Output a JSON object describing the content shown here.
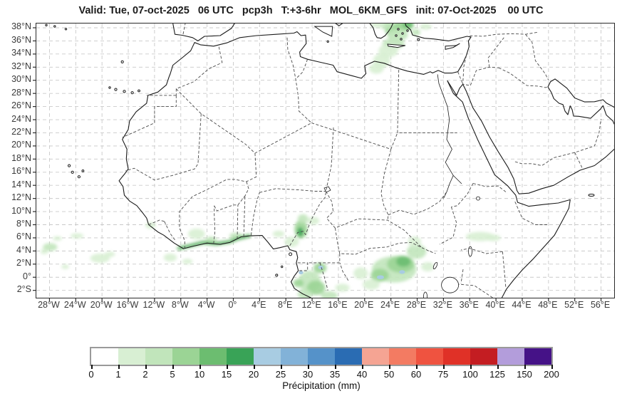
{
  "title": "Valid: Tue, 07-oct-2025   06 UTC   pcp3h   T:+3-6hr   MOL_6KM_GFS   init: 07-Oct-2025    00 UTC",
  "map": {
    "extent": {
      "lon_min": -30,
      "lon_max": 58,
      "lat_min": -3.12,
      "lat_max": 38.65
    },
    "lat_ticks": [
      {
        "value": 38,
        "label": "38°N"
      },
      {
        "value": 36,
        "label": "36°N"
      },
      {
        "value": 34,
        "label": "34°N"
      },
      {
        "value": 32,
        "label": "32°N"
      },
      {
        "value": 30,
        "label": "30°N"
      },
      {
        "value": 28,
        "label": "28°N"
      },
      {
        "value": 26,
        "label": "26°N"
      },
      {
        "value": 24,
        "label": "24°N"
      },
      {
        "value": 22,
        "label": "22°N"
      },
      {
        "value": 20,
        "label": "20°N"
      },
      {
        "value": 18,
        "label": "18°N"
      },
      {
        "value": 16,
        "label": "16°N"
      },
      {
        "value": 14,
        "label": "14°N"
      },
      {
        "value": 12,
        "label": "12°N"
      },
      {
        "value": 10,
        "label": "10°N"
      },
      {
        "value": 8,
        "label": "8°N"
      },
      {
        "value": 6,
        "label": "6°N"
      },
      {
        "value": 4,
        "label": "4°N"
      },
      {
        "value": 2,
        "label": "2°N"
      },
      {
        "value": 0,
        "label": "0°"
      },
      {
        "value": -2,
        "label": "2°S"
      }
    ],
    "lon_ticks": [
      {
        "value": -28,
        "label": "28°W"
      },
      {
        "value": -24,
        "label": "24°W"
      },
      {
        "value": -20,
        "label": "20°W"
      },
      {
        "value": -16,
        "label": "16°W"
      },
      {
        "value": -12,
        "label": "12°W"
      },
      {
        "value": -8,
        "label": "8°W"
      },
      {
        "value": -4,
        "label": "4°W"
      },
      {
        "value": 0,
        "label": "0°"
      },
      {
        "value": 4,
        "label": "4°E"
      },
      {
        "value": 8,
        "label": "8°E"
      },
      {
        "value": 12,
        "label": "12°E"
      },
      {
        "value": 16,
        "label": "16°E"
      },
      {
        "value": 20,
        "label": "20°E"
      },
      {
        "value": 24,
        "label": "24°E"
      },
      {
        "value": 28,
        "label": "28°E"
      },
      {
        "value": 32,
        "label": "32°E"
      },
      {
        "value": 36,
        "label": "36°E"
      },
      {
        "value": 40,
        "label": "40°E"
      },
      {
        "value": 44,
        "label": "44°E"
      },
      {
        "value": 48,
        "label": "48°E"
      },
      {
        "value": 52,
        "label": "52°E"
      },
      {
        "value": 56,
        "label": "56°E"
      }
    ]
  },
  "colorbar": {
    "label": "Précipitation (mm)",
    "tick_values": [
      "0",
      "1",
      "2",
      "5",
      "10",
      "15",
      "20",
      "25",
      "30",
      "35",
      "40",
      "50",
      "60",
      "75",
      "100",
      "125",
      "150",
      "200"
    ],
    "segment_colors": [
      "#ffffff",
      "#d8efd3",
      "#c1e5bb",
      "#9bd495",
      "#6cbd70",
      "#39a357",
      "#a8cce2",
      "#82b2d8",
      "#5592c9",
      "#2a6cb3",
      "#f5a493",
      "#f37b62",
      "#ef5340",
      "#e03127",
      "#c41d22",
      "#b39ddb",
      "#451287"
    ]
  },
  "chart_data": {
    "type": "heatmap",
    "title": "3-hour accumulated precipitation forecast (mm), MOL_6KM_GFS",
    "units": "mm",
    "legend_bounds": [
      0,
      1,
      2,
      5,
      10,
      15,
      20,
      25,
      30,
      35,
      40,
      50,
      60,
      75,
      100,
      125,
      150,
      200
    ],
    "precip_cells": [
      {
        "lon": 25.2,
        "lat": 38.4,
        "rx": 2.4,
        "ry": 1.1,
        "seg": 2
      },
      {
        "lon": 25.9,
        "lat": 38.4,
        "rx": 1.3,
        "ry": 0.8,
        "seg": 3
      },
      {
        "lon": 26.6,
        "lat": 38.5,
        "rx": 0.8,
        "ry": 0.6,
        "seg": 4
      },
      {
        "lon": 24.2,
        "lat": 37.6,
        "rx": 1.1,
        "ry": 0.8,
        "seg": 3
      },
      {
        "lon": 23.2,
        "lat": 38.4,
        "rx": 1.0,
        "ry": 0.6,
        "seg": 2
      },
      {
        "lon": 22.0,
        "lat": 38.5,
        "rx": 1.1,
        "ry": 0.5,
        "seg": 1
      },
      {
        "lon": 25.0,
        "lat": 36.9,
        "rx": 1.6,
        "ry": 0.9,
        "seg": 2
      },
      {
        "lon": 24.4,
        "lat": 35.6,
        "rx": 1.7,
        "ry": 0.8,
        "seg": 2
      },
      {
        "lon": 23.6,
        "lat": 34.5,
        "rx": 1.5,
        "ry": 1.0,
        "seg": 1
      },
      {
        "lon": 22.6,
        "lat": 33.0,
        "rx": 1.3,
        "ry": 1.1,
        "seg": 1
      },
      {
        "lon": 21.8,
        "lat": 31.8,
        "rx": 1.1,
        "ry": 0.8,
        "seg": 1
      },
      {
        "lon": 29.3,
        "lat": 38.2,
        "rx": 0.9,
        "ry": 0.5,
        "seg": 1
      },
      {
        "lon": 27.8,
        "lat": 37.3,
        "rx": 0.7,
        "ry": 0.5,
        "seg": 2
      },
      {
        "lon": -27.9,
        "lat": 4.6,
        "rx": 1.1,
        "ry": 0.6,
        "seg": 2
      },
      {
        "lon": -28.8,
        "lat": 3.9,
        "rx": 0.6,
        "ry": 0.4,
        "seg": 1
      },
      {
        "lon": -26.8,
        "lat": 5.9,
        "rx": 0.7,
        "ry": 0.35,
        "seg": 1
      },
      {
        "lon": -23.8,
        "lat": 6.3,
        "rx": 1.0,
        "ry": 0.4,
        "seg": 1
      },
      {
        "lon": -20.3,
        "lat": 2.9,
        "rx": 1.5,
        "ry": 0.7,
        "seg": 1
      },
      {
        "lon": -18.8,
        "lat": 3.5,
        "rx": 0.8,
        "ry": 0.4,
        "seg": 1
      },
      {
        "lon": -25.6,
        "lat": 1.6,
        "rx": 0.6,
        "ry": 0.35,
        "seg": 1
      },
      {
        "lon": -5.6,
        "lat": 6.6,
        "rx": 1.3,
        "ry": 0.8,
        "seg": 1
      },
      {
        "lon": -3.4,
        "lat": 5.7,
        "rx": 0.9,
        "ry": 0.5,
        "seg": 2
      },
      {
        "lon": 0.4,
        "lat": 6.3,
        "rx": 1.0,
        "ry": 0.5,
        "seg": 2
      },
      {
        "lon": -12.6,
        "lat": 7.9,
        "rx": 0.8,
        "ry": 0.5,
        "seg": 1
      },
      {
        "lon": -9.6,
        "lat": 3.0,
        "rx": 1.0,
        "ry": 0.6,
        "seg": 1
      },
      {
        "lon": -7.0,
        "lat": 2.4,
        "rx": 0.8,
        "ry": 0.4,
        "seg": 1
      },
      {
        "lon": 10.3,
        "lat": 7.3,
        "rx": 1.0,
        "ry": 1.4,
        "seg": 3
      },
      {
        "lon": 10.2,
        "lat": 6.9,
        "rx": 0.45,
        "ry": 0.7,
        "seg": 5
      },
      {
        "lon": 10.6,
        "lat": 8.9,
        "rx": 0.8,
        "ry": 0.7,
        "seg": 2
      },
      {
        "lon": 8.9,
        "lat": 5.4,
        "rx": 1.1,
        "ry": 0.8,
        "seg": 1
      },
      {
        "lon": 6.9,
        "lat": 6.6,
        "rx": 0.9,
        "ry": 0.5,
        "seg": 1
      },
      {
        "lon": 12.2,
        "lat": 8.6,
        "rx": 0.9,
        "ry": 0.6,
        "seg": 1
      },
      {
        "lon": 11.6,
        "lat": -0.6,
        "rx": 1.7,
        "ry": 1.6,
        "seg": 2
      },
      {
        "lon": 12.6,
        "lat": -1.6,
        "rx": 1.4,
        "ry": 1.1,
        "seg": 3
      },
      {
        "lon": 10.9,
        "lat": -2.6,
        "rx": 1.1,
        "ry": 0.8,
        "seg": 2
      },
      {
        "lon": 14.6,
        "lat": -2.8,
        "rx": 1.3,
        "ry": 0.7,
        "seg": 2
      },
      {
        "lon": 9.9,
        "lat": -0.9,
        "rx": 0.8,
        "ry": 0.6,
        "seg": 3
      },
      {
        "lon": 16.6,
        "lat": -1.6,
        "rx": 1.1,
        "ry": 0.6,
        "seg": 1
      },
      {
        "lon": 10.3,
        "lat": 0.7,
        "rx": 0.35,
        "ry": 0.25,
        "seg": 6,
        "crisp": true
      },
      {
        "lon": 13.3,
        "lat": 1.5,
        "rx": 0.4,
        "ry": 0.28,
        "seg": 6,
        "crisp": true
      },
      {
        "lon": 13.2,
        "lat": 1.4,
        "rx": 1.0,
        "ry": 0.8,
        "seg": 3
      },
      {
        "lon": 24.5,
        "lat": 1.2,
        "rx": 3.4,
        "ry": 2.0,
        "seg": 2
      },
      {
        "lon": 25.5,
        "lat": 2.0,
        "rx": 2.1,
        "ry": 1.3,
        "seg": 3
      },
      {
        "lon": 25.9,
        "lat": 2.4,
        "rx": 1.1,
        "ry": 0.8,
        "seg": 4
      },
      {
        "lon": 22.3,
        "lat": 0.3,
        "rx": 1.4,
        "ry": 1.0,
        "seg": 3
      },
      {
        "lon": 22.4,
        "lat": 0.0,
        "rx": 0.55,
        "ry": 0.3,
        "seg": 6,
        "crisp": true
      },
      {
        "lon": 25.7,
        "lat": 0.8,
        "rx": 0.45,
        "ry": 0.28,
        "seg": 6,
        "crisp": true
      },
      {
        "lon": 27.9,
        "lat": 3.9,
        "rx": 1.5,
        "ry": 1.1,
        "seg": 2
      },
      {
        "lon": 27.6,
        "lat": 5.4,
        "rx": 1.0,
        "ry": 0.8,
        "seg": 1
      },
      {
        "lon": 21.0,
        "lat": -1.1,
        "rx": 1.3,
        "ry": 0.8,
        "seg": 1
      },
      {
        "lon": 19.4,
        "lat": 0.6,
        "rx": 1.1,
        "ry": 0.9,
        "seg": 1
      },
      {
        "lon": 29.6,
        "lat": 1.6,
        "rx": 1.0,
        "ry": 0.7,
        "seg": 1
      },
      {
        "lon": 37.6,
        "lat": 6.2,
        "rx": 2.2,
        "ry": 0.7,
        "seg": 1
      },
      {
        "lon": 39.6,
        "lat": 6.0,
        "rx": 1.1,
        "ry": 0.5,
        "seg": 1
      }
    ],
    "coast_rain_line": {
      "points": [
        [
          -8.3,
          4.4
        ],
        [
          -6.6,
          4.8
        ],
        [
          -4.6,
          5.3
        ],
        [
          -2.6,
          5.1
        ],
        [
          -0.6,
          5.4
        ],
        [
          0.7,
          5.9
        ],
        [
          2.4,
          6.3
        ]
      ],
      "core_seg": 5,
      "halo_seg": 3
    }
  }
}
